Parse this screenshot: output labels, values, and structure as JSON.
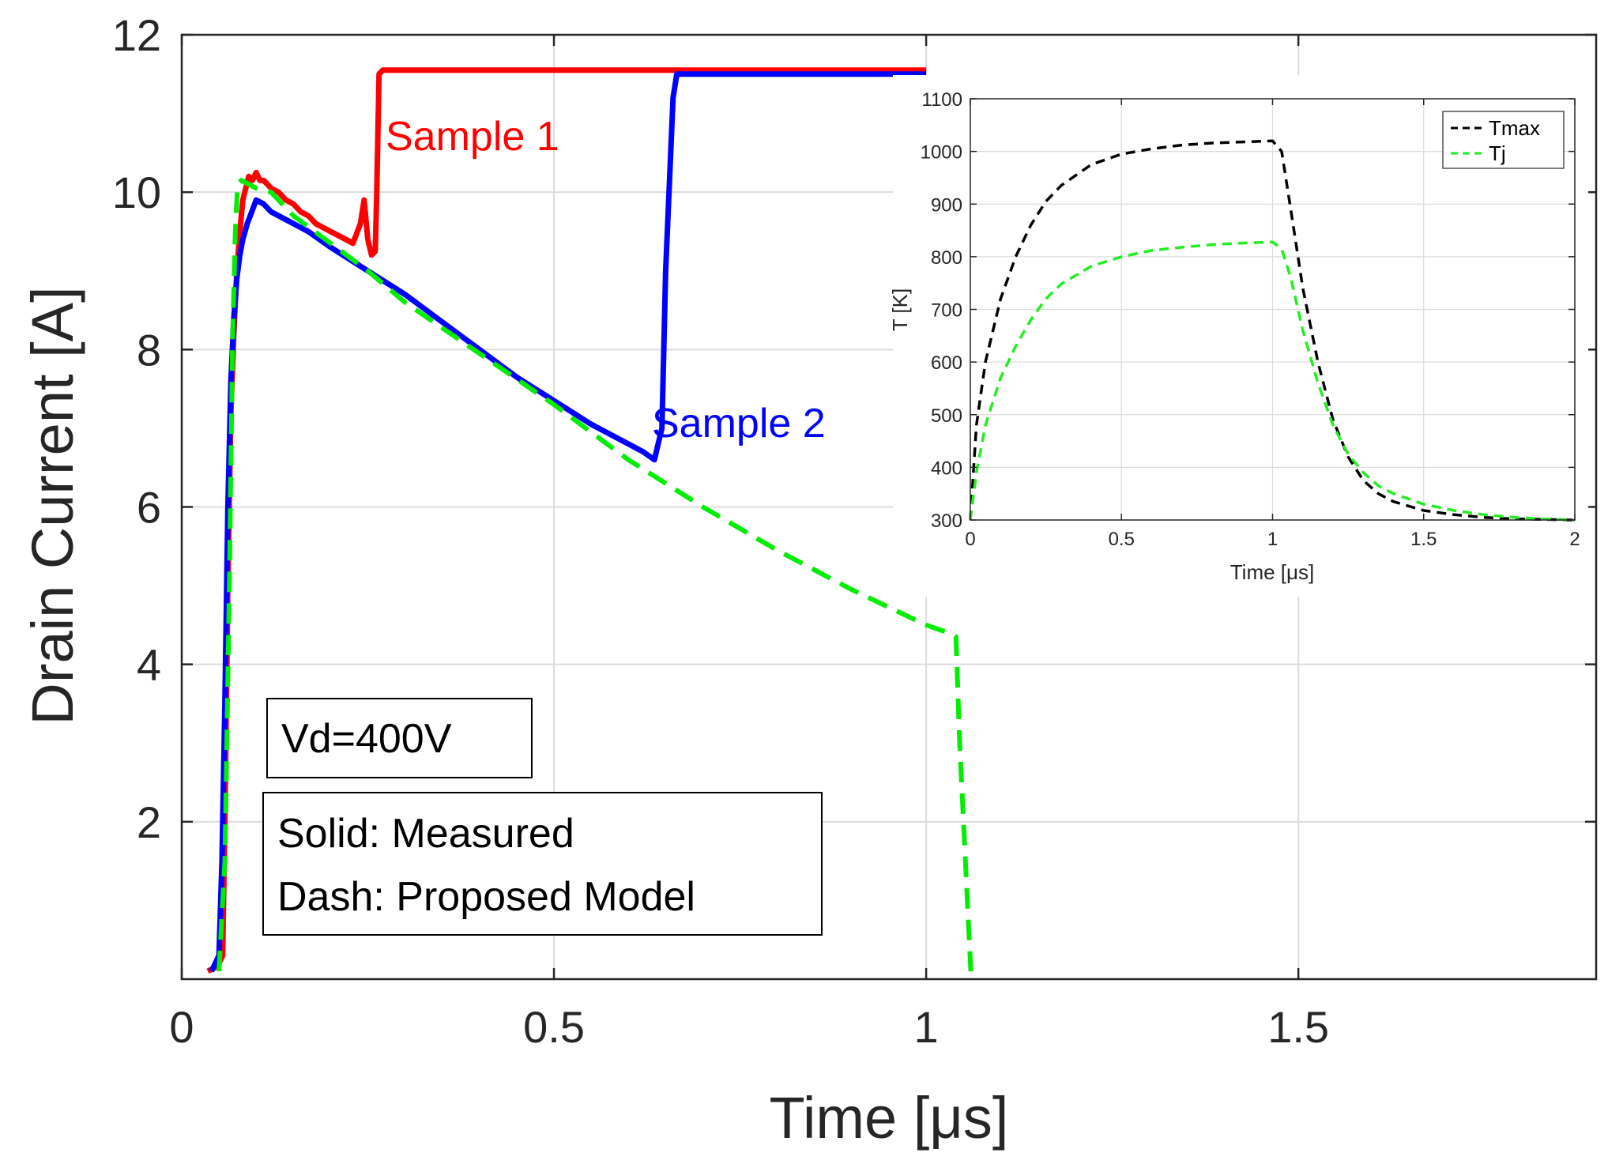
{
  "chart_data": [
    {
      "type": "line",
      "title": "",
      "xlabel": "Time [μs]",
      "ylabel": "Drain Current [A]",
      "xlim": [
        0,
        1.9
      ],
      "ylim": [
        0,
        12
      ],
      "grid": true,
      "xticks": [
        0,
        0.5,
        1,
        1.5
      ],
      "xtick_labels": [
        "0",
        "0.5",
        "1",
        "1.5"
      ],
      "yticks": [
        2,
        4,
        6,
        8,
        10,
        12
      ],
      "ytick_labels": [
        "2",
        "4",
        "6",
        "8",
        "10",
        "12"
      ],
      "series": [
        {
          "name": "Sample 1",
          "style": "solid",
          "color": "#ff0000",
          "x": [
            0.035,
            0.045,
            0.05,
            0.055,
            0.058,
            0.062,
            0.066,
            0.07,
            0.074,
            0.078,
            0.082,
            0.086,
            0.09,
            0.095,
            0.1,
            0.105,
            0.11,
            0.12,
            0.13,
            0.14,
            0.15,
            0.16,
            0.17,
            0.18,
            0.19,
            0.2,
            0.21,
            0.22,
            0.23,
            0.24,
            0.245,
            0.25,
            0.255,
            0.26,
            0.262,
            0.265,
            0.27,
            0.3,
            0.5,
            0.8,
            1.0
          ],
          "y": [
            0.1,
            0.15,
            0.2,
            0.3,
            2.0,
            5.0,
            7.2,
            8.2,
            9.0,
            9.5,
            9.9,
            10.05,
            10.2,
            10.15,
            10.25,
            10.15,
            10.15,
            10.05,
            10.0,
            9.9,
            9.85,
            9.75,
            9.7,
            9.6,
            9.55,
            9.5,
            9.45,
            9.4,
            9.35,
            9.6,
            9.9,
            9.4,
            9.2,
            9.25,
            10.0,
            11.5,
            11.55,
            11.55,
            11.55,
            11.55,
            11.55
          ]
        },
        {
          "name": "Sample 2",
          "style": "solid",
          "color": "#0000ff",
          "x": [
            0.04,
            0.045,
            0.05,
            0.054,
            0.058,
            0.062,
            0.066,
            0.07,
            0.074,
            0.078,
            0.082,
            0.088,
            0.094,
            0.1,
            0.11,
            0.12,
            0.13,
            0.14,
            0.15,
            0.17,
            0.2,
            0.25,
            0.3,
            0.35,
            0.4,
            0.45,
            0.5,
            0.55,
            0.6,
            0.62,
            0.635,
            0.64,
            0.645,
            0.65,
            0.66,
            0.665,
            0.67,
            0.75,
            0.85,
            1.0
          ],
          "y": [
            0.1,
            0.2,
            0.3,
            1.5,
            3.5,
            6.0,
            7.6,
            8.4,
            8.9,
            9.2,
            9.4,
            9.6,
            9.75,
            9.9,
            9.85,
            9.75,
            9.7,
            9.65,
            9.6,
            9.5,
            9.3,
            9.0,
            8.7,
            8.35,
            8.0,
            7.65,
            7.35,
            7.05,
            6.8,
            6.7,
            6.6,
            6.8,
            7.0,
            9.0,
            11.2,
            11.5,
            11.5,
            11.5,
            11.5,
            11.5
          ]
        },
        {
          "name": "Proposed Model",
          "style": "dashed",
          "color": "#00ee00",
          "x": [
            0.05,
            0.058,
            0.064,
            0.068,
            0.072,
            0.075,
            0.08,
            0.09,
            0.1,
            0.12,
            0.15,
            0.2,
            0.25,
            0.3,
            0.4,
            0.5,
            0.6,
            0.7,
            0.8,
            0.9,
            1.0,
            1.03,
            1.04,
            1.045,
            1.06
          ],
          "y": [
            0.1,
            1.5,
            5.0,
            8.0,
            9.5,
            10.1,
            10.15,
            10.1,
            10.05,
            10.0,
            9.7,
            9.35,
            9.0,
            8.6,
            7.95,
            7.3,
            6.6,
            6.0,
            5.45,
            4.95,
            4.5,
            4.4,
            4.35,
            3.0,
            0.1
          ]
        }
      ],
      "annotations": [
        {
          "text": "Sample 1",
          "color": "#ff0000"
        },
        {
          "text": "Sample 2",
          "color": "#0000ff"
        },
        {
          "text": "Vd=400V"
        },
        {
          "text": "Solid: Measured"
        },
        {
          "text": "Dash: Proposed Model"
        }
      ]
    },
    {
      "type": "line",
      "title": "",
      "xlabel": "Time [μs]",
      "ylabel": "T [K]",
      "xlim": [
        0,
        2
      ],
      "ylim": [
        300,
        1100
      ],
      "grid": true,
      "xticks": [
        0,
        0.5,
        1,
        1.5,
        2
      ],
      "xtick_labels": [
        "0",
        "0.5",
        "1",
        "1.5",
        "2"
      ],
      "yticks": [
        300,
        400,
        500,
        600,
        700,
        800,
        900,
        1000,
        1100
      ],
      "ytick_labels": [
        "300",
        "400",
        "500",
        "600",
        "700",
        "800",
        "900",
        "1000",
        "1100"
      ],
      "legend_position": "top-right",
      "series": [
        {
          "name": "Tmax",
          "style": "dashed",
          "color": "#000000",
          "x": [
            0,
            0.02,
            0.05,
            0.1,
            0.15,
            0.2,
            0.25,
            0.3,
            0.4,
            0.5,
            0.6,
            0.7,
            0.8,
            0.9,
            1.0,
            1.03,
            1.06,
            1.1,
            1.15,
            1.2,
            1.25,
            1.3,
            1.35,
            1.4,
            1.5,
            1.6,
            1.7,
            1.8,
            1.9,
            2.0
          ],
          "y": [
            300,
            480,
            600,
            720,
            800,
            860,
            905,
            935,
            975,
            995,
            1005,
            1012,
            1016,
            1018,
            1020,
            1000,
            890,
            740,
            600,
            490,
            420,
            375,
            350,
            335,
            318,
            310,
            305,
            302,
            301,
            300
          ]
        },
        {
          "name": "Tj",
          "style": "dashed",
          "color": "#22ee22",
          "x": [
            0,
            0.02,
            0.05,
            0.1,
            0.15,
            0.2,
            0.25,
            0.3,
            0.4,
            0.5,
            0.6,
            0.7,
            0.8,
            0.9,
            1.0,
            1.03,
            1.06,
            1.1,
            1.15,
            1.2,
            1.25,
            1.3,
            1.35,
            1.4,
            1.5,
            1.6,
            1.7,
            1.8,
            1.9,
            2.0
          ],
          "y": [
            300,
            390,
            480,
            570,
            630,
            680,
            720,
            748,
            782,
            800,
            812,
            818,
            823,
            826,
            828,
            815,
            760,
            660,
            560,
            480,
            425,
            390,
            365,
            350,
            330,
            318,
            310,
            305,
            302,
            300
          ]
        }
      ]
    }
  ]
}
